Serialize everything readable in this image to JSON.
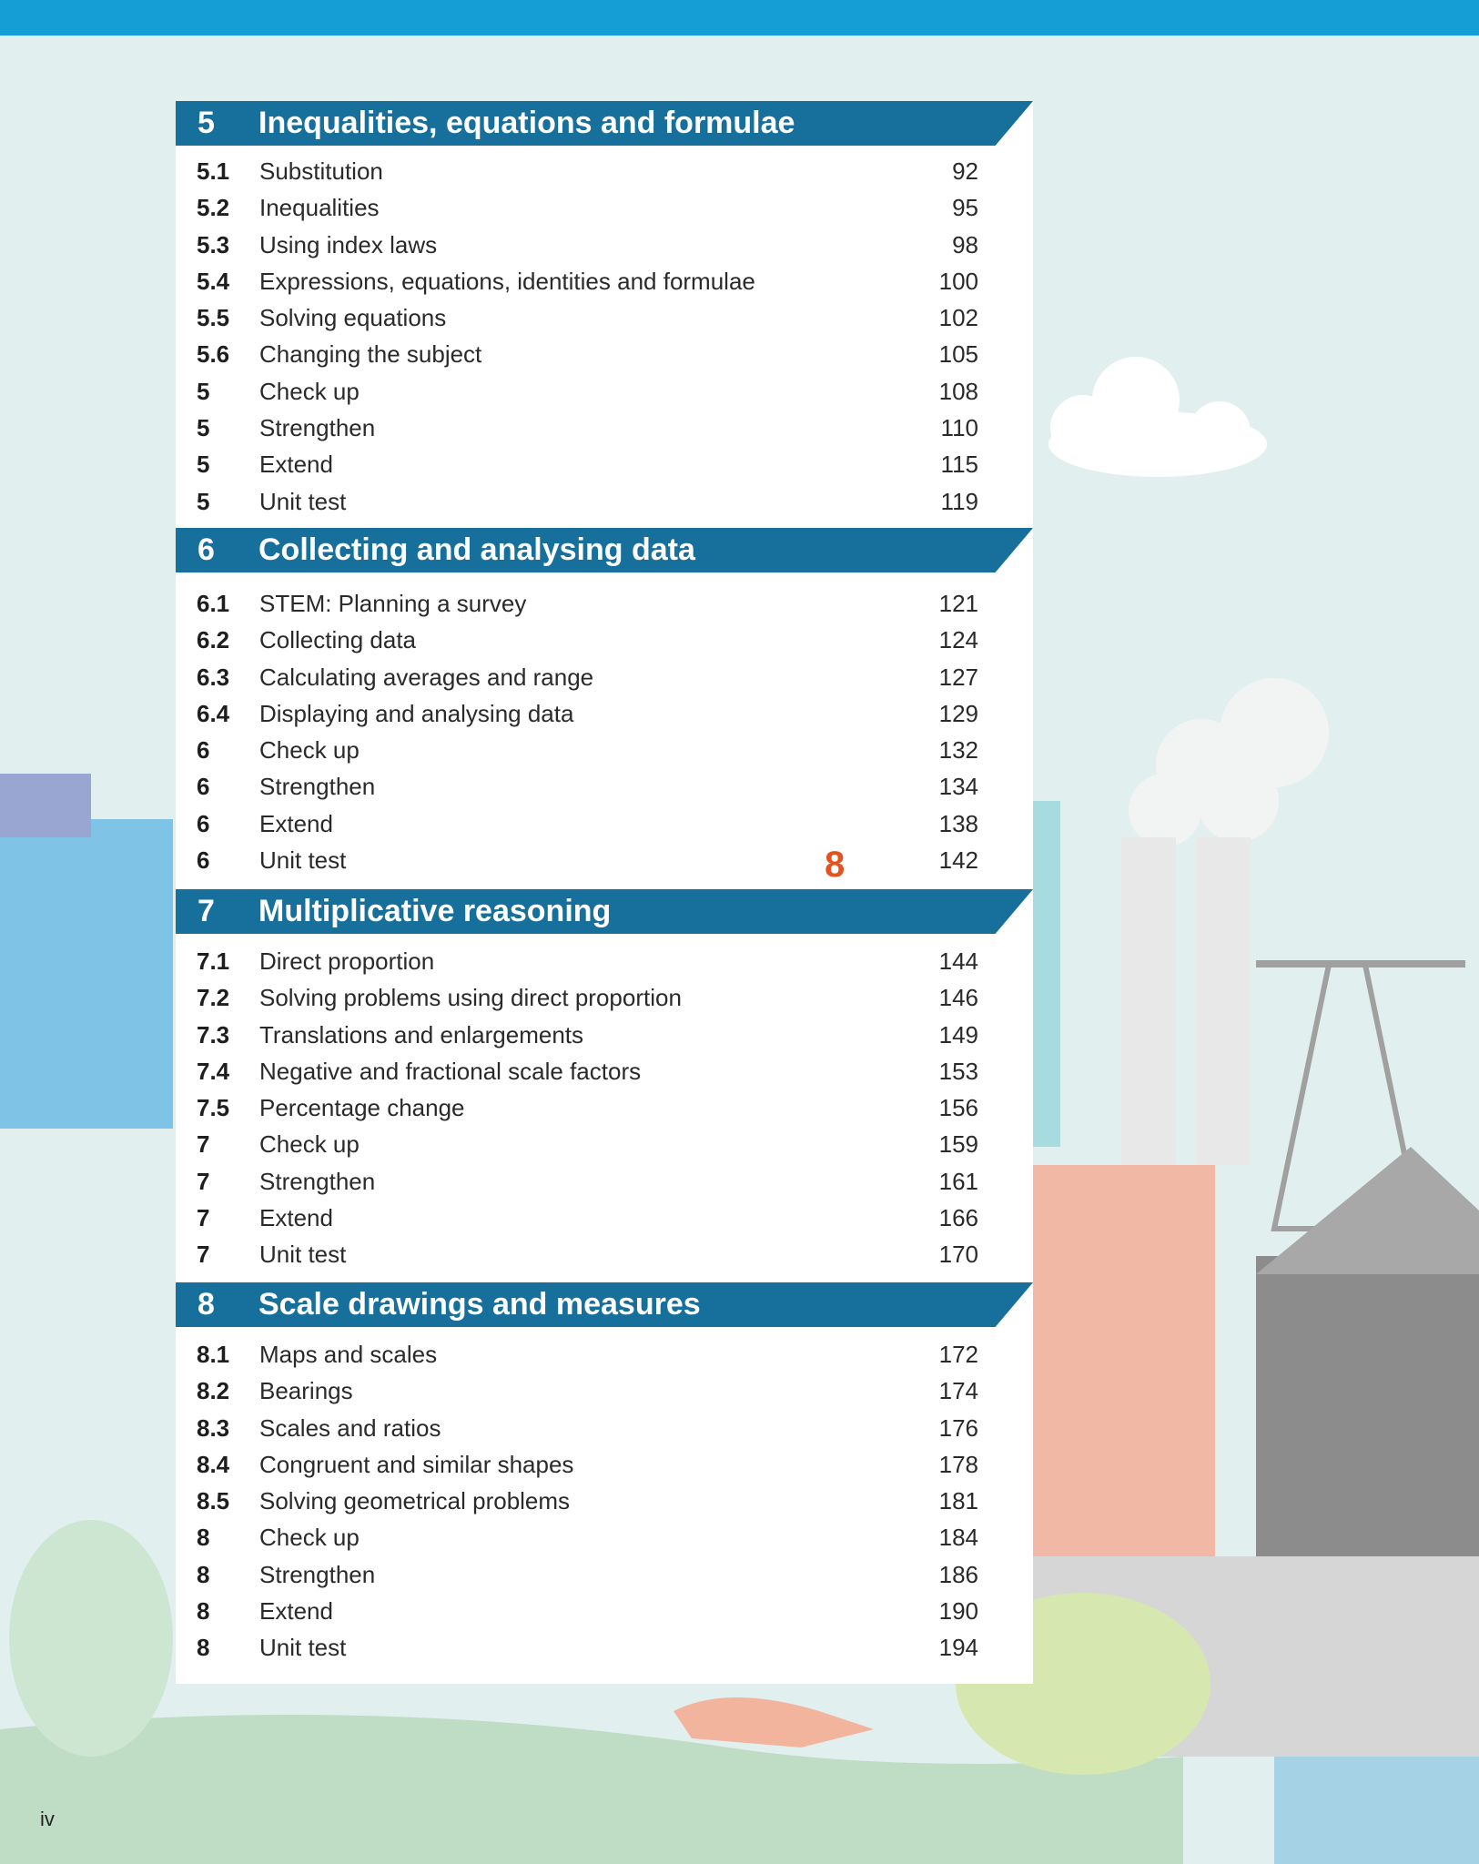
{
  "chapters": [
    {
      "number": "5",
      "title": "Inequalities, equations and formulae",
      "rows": [
        {
          "num": "5.1",
          "title": "Substitution",
          "page": "92"
        },
        {
          "num": "5.2",
          "title": "Inequalities",
          "page": "95"
        },
        {
          "num": "5.3",
          "title": "Using index laws",
          "page": "98"
        },
        {
          "num": "5.4",
          "title": "Expressions, equations, identities and formulae",
          "page": "100"
        },
        {
          "num": "5.5",
          "title": "Solving equations",
          "page": "102"
        },
        {
          "num": "5.6",
          "title": "Changing the subject",
          "page": "105"
        },
        {
          "num": "5",
          "title": "Check up",
          "page": "108"
        },
        {
          "num": "5",
          "title": "Strengthen",
          "page": "110"
        },
        {
          "num": "5",
          "title": "Extend",
          "page": "115"
        },
        {
          "num": "5",
          "title": "Unit test",
          "page": "119"
        }
      ]
    },
    {
      "number": "6",
      "title": "Collecting and analysing data",
      "rows": [
        {
          "num": "6.1",
          "title": "STEM: Planning a survey",
          "page": "121"
        },
        {
          "num": "6.2",
          "title": "Collecting data",
          "page": "124"
        },
        {
          "num": "6.3",
          "title": "Calculating averages and range",
          "page": "127"
        },
        {
          "num": "6.4",
          "title": "Displaying and analysing data",
          "page": "129"
        },
        {
          "num": "6",
          "title": "Check up",
          "page": "132"
        },
        {
          "num": "6",
          "title": "Strengthen",
          "page": "134"
        },
        {
          "num": "6",
          "title": "Extend",
          "page": "138"
        },
        {
          "num": "6",
          "title": "Unit test",
          "page": "142"
        }
      ]
    },
    {
      "number": "7",
      "title": "Multiplicative reasoning",
      "rows": [
        {
          "num": "7.1",
          "title": "Direct proportion",
          "page": "144"
        },
        {
          "num": "7.2",
          "title": "Solving problems using direct proportion",
          "page": "146"
        },
        {
          "num": "7.3",
          "title": "Translations and enlargements",
          "page": "149"
        },
        {
          "num": "7.4",
          "title": "Negative and fractional scale factors",
          "page": "153"
        },
        {
          "num": "7.5",
          "title": "Percentage change",
          "page": "156"
        },
        {
          "num": "7",
          "title": "Check up",
          "page": "159"
        },
        {
          "num": "7",
          "title": "Strengthen",
          "page": "161"
        },
        {
          "num": "7",
          "title": "Extend",
          "page": "166"
        },
        {
          "num": "7",
          "title": "Unit test",
          "page": "170"
        }
      ]
    },
    {
      "number": "8",
      "title": "Scale drawings and measures",
      "rows": [
        {
          "num": "8.1",
          "title": "Maps and scales",
          "page": "172"
        },
        {
          "num": "8.2",
          "title": "Bearings",
          "page": "174"
        },
        {
          "num": "8.3",
          "title": "Scales and ratios",
          "page": "176"
        },
        {
          "num": "8.4",
          "title": "Congruent and similar shapes",
          "page": "178"
        },
        {
          "num": "8.5",
          "title": "Solving geometrical problems",
          "page": "181"
        },
        {
          "num": "8",
          "title": "Check up",
          "page": "184"
        },
        {
          "num": "8",
          "title": "Strengthen",
          "page": "186"
        },
        {
          "num": "8",
          "title": "Extend",
          "page": "190"
        },
        {
          "num": "8",
          "title": "Unit test",
          "page": "194"
        }
      ]
    }
  ],
  "marker": "8",
  "page_number": "iv",
  "colors": {
    "top_bar": "#159dd6",
    "chapter_header": "#176f9b",
    "marker": "#e4531f",
    "background": "#e2efef"
  }
}
